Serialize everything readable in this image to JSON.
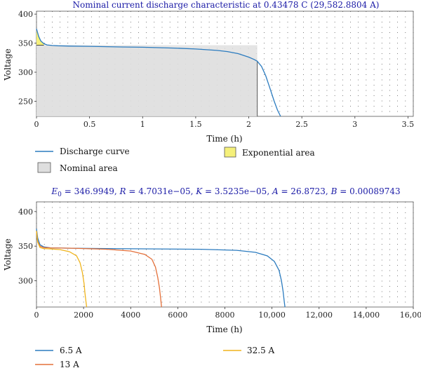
{
  "chart_data": [
    {
      "type": "line",
      "title": "Nominal current discharge characteristic at 0.43478 C (29,582.8804 A)",
      "xlabel": "Time (h)",
      "ylabel": "Voltage",
      "xlim": [
        0,
        3.55
      ],
      "ylim": [
        224,
        405
      ],
      "xticks": [
        0,
        0.5,
        1,
        1.5,
        2,
        2.5,
        3,
        3.5
      ],
      "xtick_labels": [
        "0",
        "0.5",
        "1",
        "1.5",
        "2",
        "2.5",
        "3",
        "3.5"
      ],
      "yticks": [
        250,
        300,
        350,
        400
      ],
      "ytick_labels": [
        "250",
        "300",
        "350",
        "400"
      ],
      "grid": true,
      "legend_position": "bottom",
      "series": [
        {
          "name": "Discharge curve",
          "color": "#2b7bbf",
          "x": [
            0,
            0.02,
            0.04,
            0.07,
            0.1,
            0.15,
            0.2,
            0.3,
            0.5,
            0.8,
            1.0,
            1.3,
            1.5,
            1.7,
            1.8,
            1.9,
            2.0,
            2.05,
            2.08,
            2.12,
            2.16,
            2.2,
            2.24,
            2.27,
            2.3
          ],
          "y": [
            375,
            362,
            354,
            349,
            347,
            346,
            345.5,
            345,
            344.5,
            343.5,
            343,
            341.5,
            340,
            337.5,
            335.5,
            332,
            326,
            322,
            319,
            310,
            294,
            272,
            250,
            235,
            224
          ]
        },
        {
          "name": "Nominal area",
          "color": "#dedede",
          "x_range": [
            0,
            2.08
          ],
          "y_top": 346.5
        },
        {
          "name": "Exponential area",
          "color": "#f5f07a",
          "x_range": [
            0,
            0.07
          ],
          "y_top": 375
        }
      ]
    },
    {
      "type": "line",
      "title": "E0 = 346.9949, R = 4.7031e−05, K = 3.5235e−05, A = 26.8723, B = 0.00089743",
      "title_parts": [
        "E",
        "0",
        " = 346.9949, ",
        "R",
        " = 4.7031e−05, ",
        "K",
        " = 3.5235e−05, ",
        "A",
        " = 26.8723, ",
        "B",
        " = 0.00089743"
      ],
      "xlabel": "Time (h)",
      "ylabel": "Voltage",
      "xlim": [
        0,
        16000
      ],
      "ylim": [
        262,
        414
      ],
      "xticks": [
        0,
        2000,
        4000,
        6000,
        8000,
        10000,
        12000,
        14000,
        16000
      ],
      "xtick_labels": [
        "0",
        "2000",
        "4000",
        "6000",
        "8000",
        "10,000",
        "12,000",
        "14,000",
        "16,000"
      ],
      "yticks": [
        300,
        350,
        400
      ],
      "ytick_labels": [
        "300",
        "350",
        "400"
      ],
      "grid": true,
      "legend_position": "bottom",
      "series": [
        {
          "name": "6.5 A",
          "color": "#2b7bbf",
          "x": [
            0,
            50,
            150,
            300,
            600,
            1500,
            3000,
            5000,
            7000,
            8500,
            9300,
            9800,
            10100,
            10300,
            10400,
            10470,
            10520,
            10550
          ],
          "y": [
            375,
            362,
            352,
            349,
            347.5,
            347,
            346.5,
            346,
            345.5,
            344,
            341,
            336,
            328,
            315,
            300,
            285,
            270,
            262
          ]
        },
        {
          "name": "13 A",
          "color": "#e4703a",
          "x": [
            0,
            50,
            150,
            300,
            600,
            1500,
            3000,
            4000,
            4600,
            4900,
            5050,
            5150,
            5220,
            5270,
            5310
          ],
          "y": [
            372,
            357,
            350,
            348,
            347.5,
            347,
            345.5,
            343,
            338,
            331,
            320,
            305,
            290,
            275,
            262
          ]
        },
        {
          "name": "32.5 A",
          "color": "#f0b41c",
          "x": [
            0,
            50,
            150,
            300,
            600,
            1000,
            1400,
            1700,
            1850,
            1950,
            2020,
            2060,
            2100,
            2130
          ],
          "y": [
            372,
            356,
            348,
            346.5,
            346,
            345,
            342,
            336,
            326,
            312,
            296,
            282,
            270,
            262
          ]
        }
      ]
    }
  ]
}
